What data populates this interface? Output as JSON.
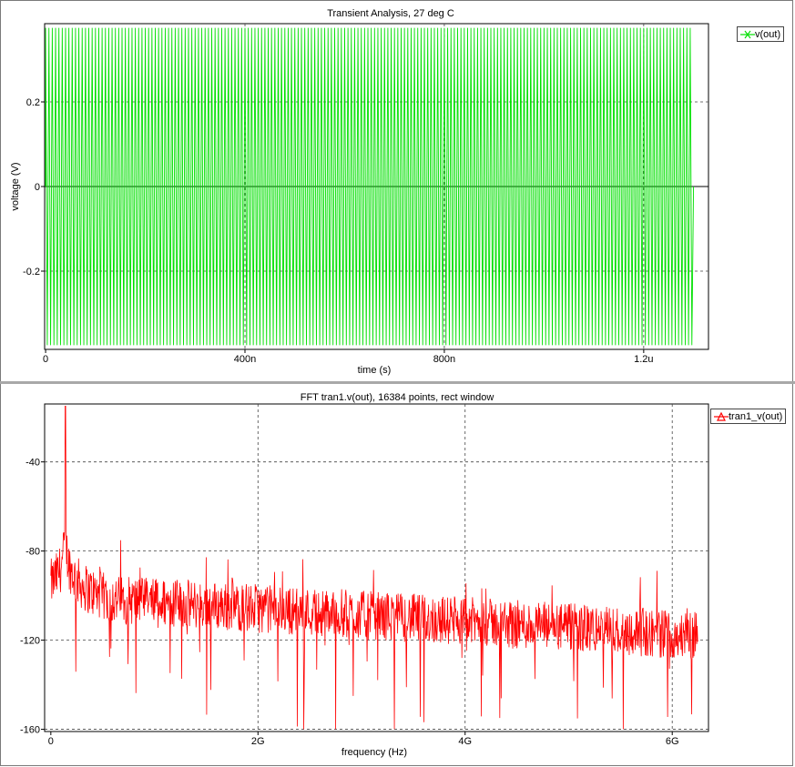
{
  "chart_data": [
    {
      "type": "line",
      "title": "Transient Analysis, 27 deg C",
      "xlabel": "time (s)",
      "ylabel": "voltage (V)",
      "xlim": [
        -2e-09,
        1.33e-06
      ],
      "ylim": [
        -0.385,
        0.385
      ],
      "xticks": [
        {
          "value": 0,
          "label": "0"
        },
        {
          "value": 4e-07,
          "label": "400n"
        },
        {
          "value": 8e-07,
          "label": "800n"
        },
        {
          "value": 1.2e-06,
          "label": "1.2u"
        }
      ],
      "yticks": [
        {
          "value": -0.2,
          "label": "-0.2"
        },
        {
          "value": 0,
          "label": "0"
        },
        {
          "value": 0.2,
          "label": "0.2"
        }
      ],
      "grid": true,
      "legend_position": "top-right",
      "series": [
        {
          "name": "v(out)",
          "color": "#00e000",
          "waveform": "sine",
          "amplitude_v": 0.375,
          "frequency_hz": 150000000,
          "t_end_s": 1.3e-06
        }
      ]
    },
    {
      "type": "line",
      "title": "FFT tran1.v(out), 16384 points, rect window",
      "xlabel": "frequency (Hz)",
      "ylabel": "",
      "xlim": [
        -60000000.0,
        6350000000.0
      ],
      "ylim": [
        -161,
        -14
      ],
      "xticks": [
        {
          "value": 0,
          "label": "0"
        },
        {
          "value": 2000000000.0,
          "label": "2G"
        },
        {
          "value": 4000000000.0,
          "label": "4G"
        },
        {
          "value": 6000000000.0,
          "label": "6G"
        }
      ],
      "yticks": [
        {
          "value": -160,
          "label": "-160"
        },
        {
          "value": -120,
          "label": "-120"
        },
        {
          "value": -80,
          "label": "-80"
        },
        {
          "value": -40,
          "label": "-40"
        }
      ],
      "grid": true,
      "legend_position": "top-right",
      "series": [
        {
          "name": "tran1_v(out)",
          "color": "#ff0000",
          "peak_frequency_hz": 140000000,
          "peak_db": -15,
          "noise_floor_db_start": -100,
          "noise_floor_db_end": -118,
          "f_end_hz": 6250000000.0
        }
      ]
    }
  ]
}
